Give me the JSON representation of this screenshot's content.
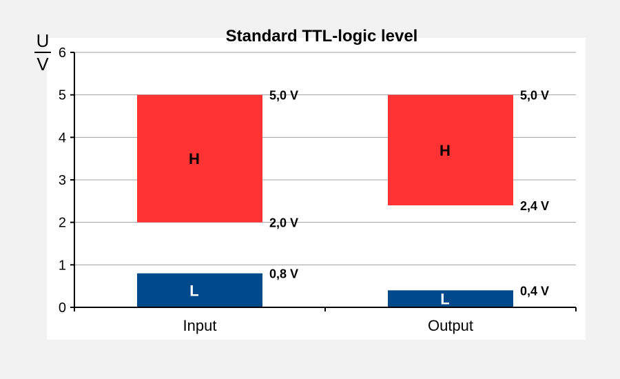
{
  "chart_data": {
    "type": "bar",
    "title": "Standard TTL-logic level",
    "ylabel_top": "U",
    "ylabel_bottom": "V",
    "xlabel": "",
    "categories": [
      "Input",
      "Output"
    ],
    "ylim": [
      0,
      6
    ],
    "yticks": [
      "0",
      "1",
      "2",
      "3",
      "4",
      "5",
      "6"
    ],
    "grid": true,
    "series": [
      {
        "name": "L",
        "color": "#004a8c",
        "label_color": "#ffffff",
        "ranges": [
          [
            0,
            0.8
          ],
          [
            0,
            0.4
          ]
        ],
        "bottom_labels": [
          "",
          ""
        ],
        "top_labels": [
          "0,8 V",
          "0,4 V"
        ]
      },
      {
        "name": "H",
        "color": "#ff3333",
        "label_color": "#000000",
        "ranges": [
          [
            2.0,
            5.0
          ],
          [
            2.4,
            5.0
          ]
        ],
        "bottom_labels": [
          "2,0 V",
          "2,4 V"
        ],
        "top_labels": [
          "5,0 V",
          "5,0 V"
        ]
      }
    ]
  }
}
